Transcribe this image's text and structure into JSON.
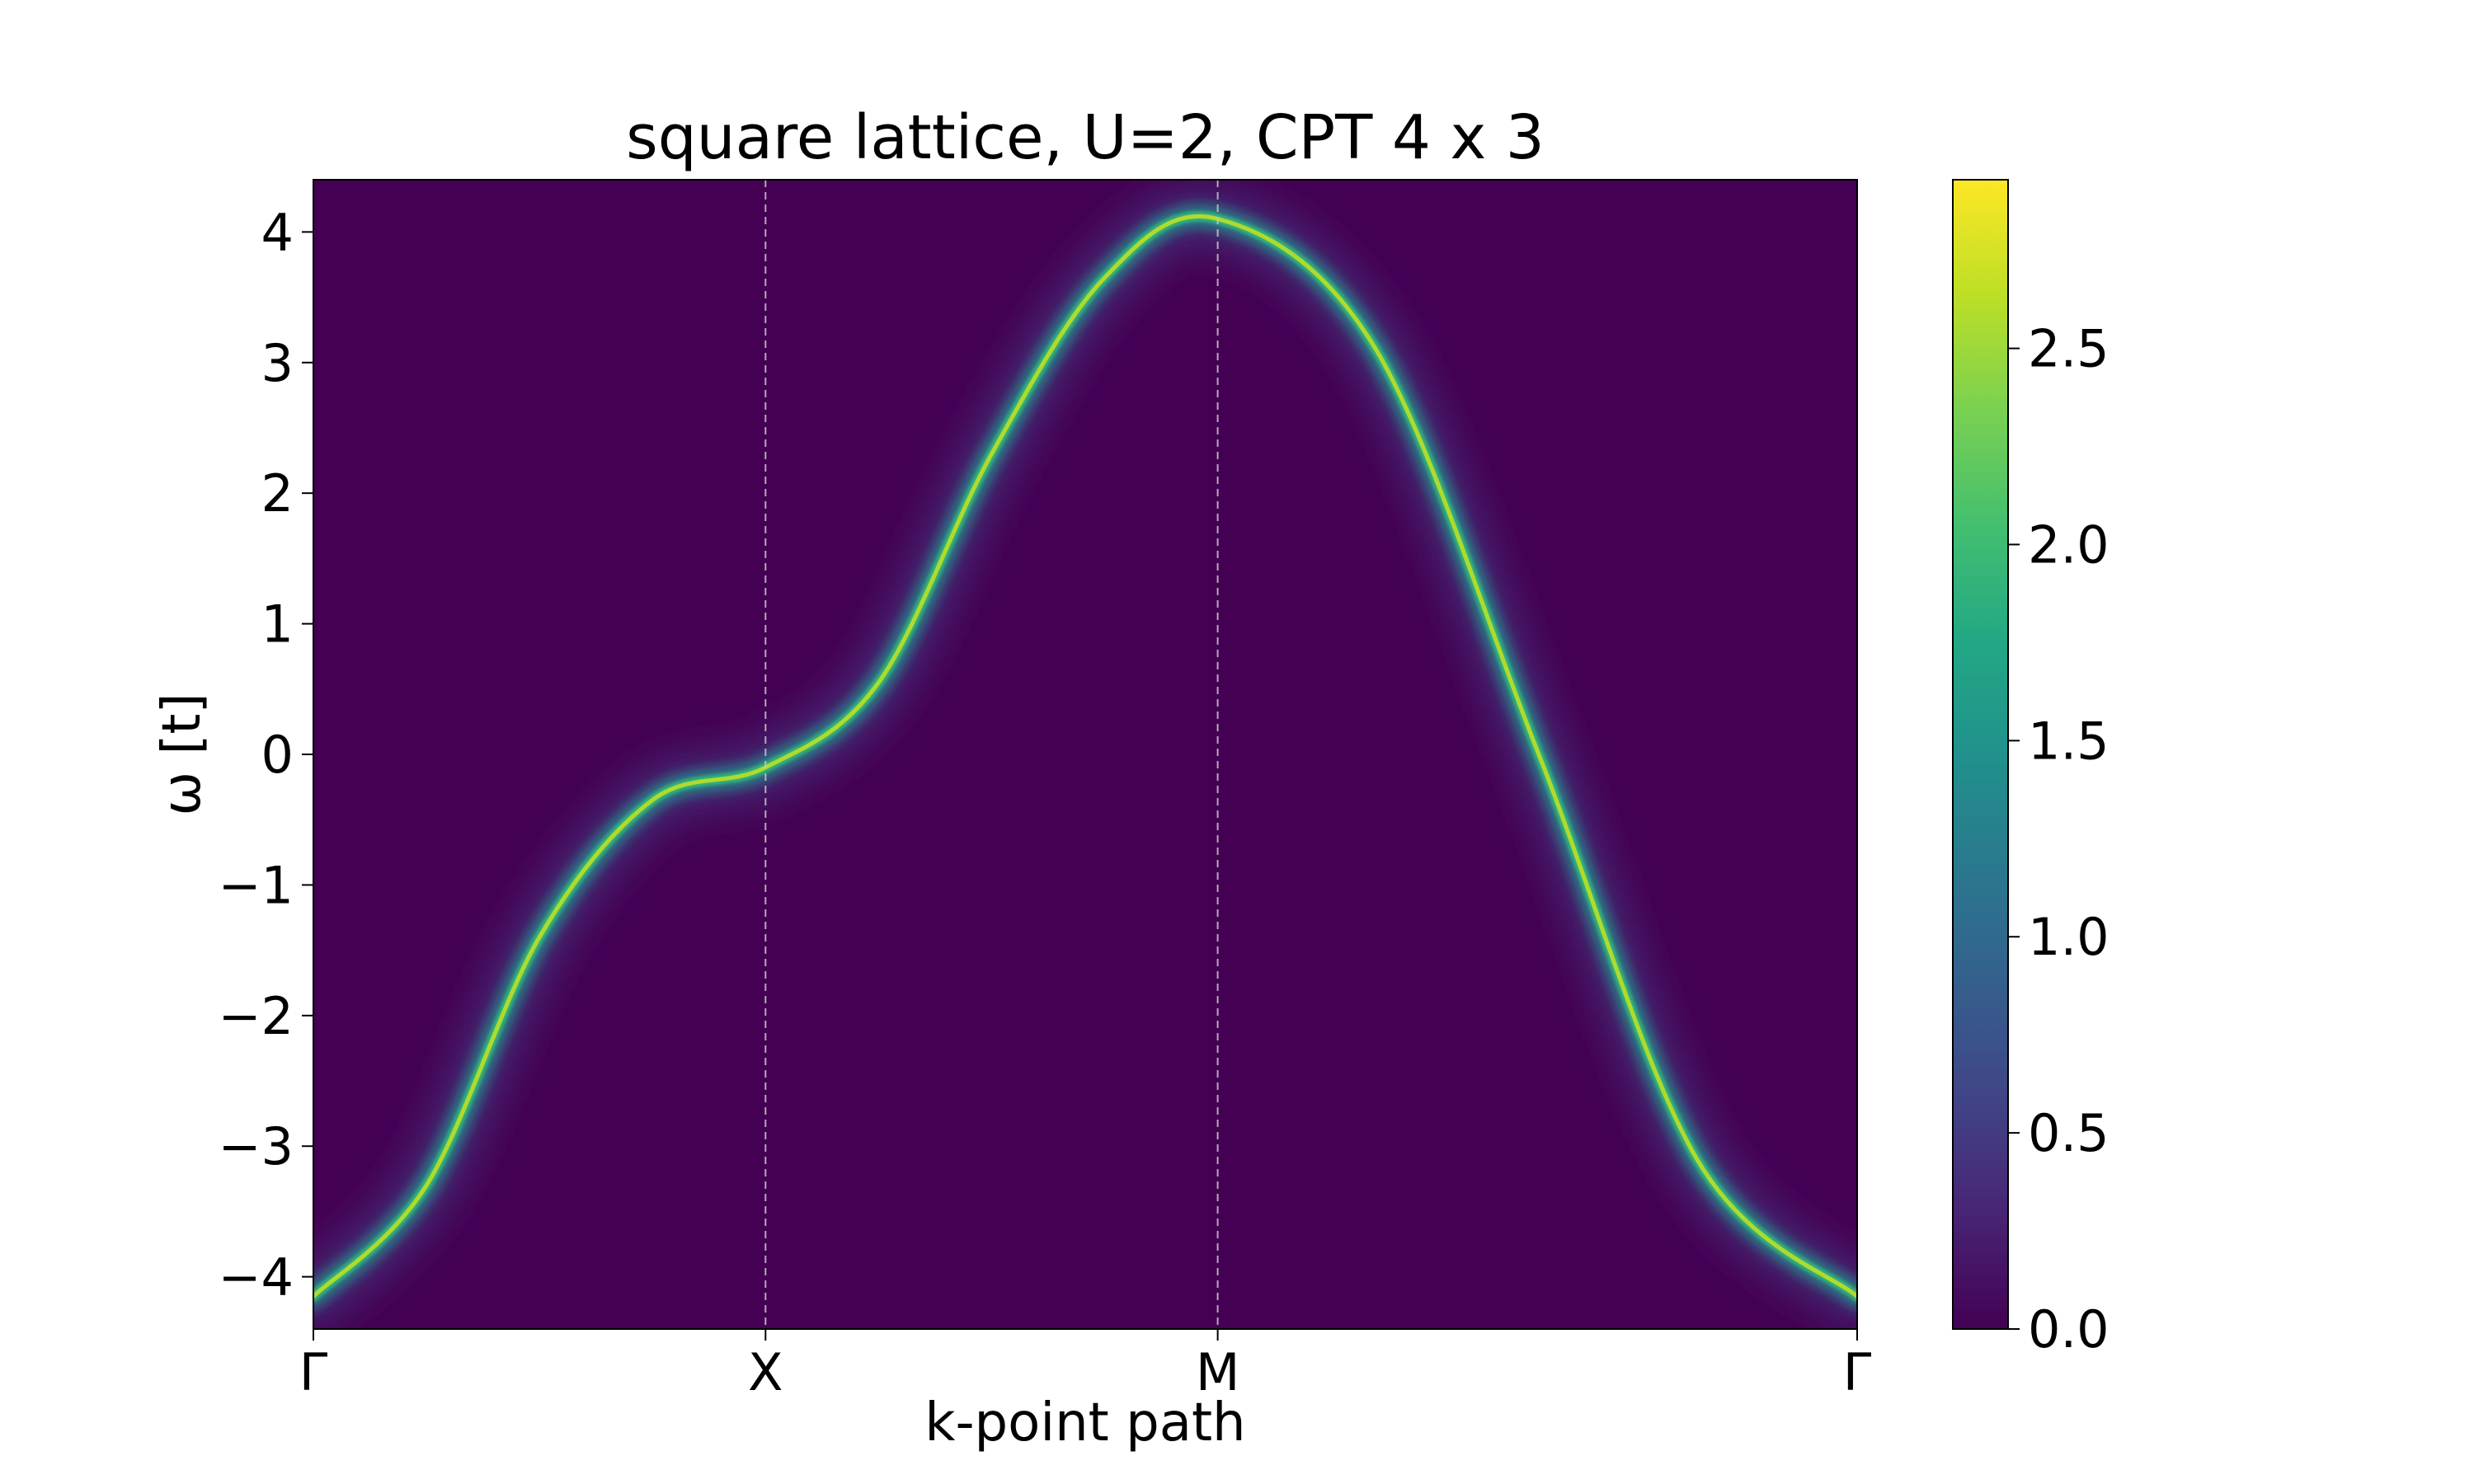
{
  "chart_data": {
    "type": "heatmap",
    "title": "square lattice, U=2, CPT 4 x 3",
    "xlabel": "k-point path",
    "ylabel": "ω [t]",
    "x_ticks": [
      "Γ",
      "X",
      "M",
      "Γ"
    ],
    "x_tick_positions": [
      0,
      1,
      2,
      3.41421
    ],
    "xlim": [
      0,
      3.41421
    ],
    "ylim": [
      -4.4,
      4.4
    ],
    "y_ticks": [
      -4,
      -3,
      -2,
      -1,
      0,
      1,
      2,
      3,
      4
    ],
    "y_tick_labels": [
      "−4",
      "−3",
      "−2",
      "−1",
      "0",
      "1",
      "2",
      "3",
      "4"
    ],
    "colorbar": {
      "colormap": "viridis",
      "range": [
        0.0,
        2.93
      ],
      "ticks": [
        0.0,
        0.5,
        1.0,
        1.5,
        2.0,
        2.5
      ],
      "tick_labels": [
        "0.0",
        "0.5",
        "1.0",
        "1.5",
        "2.0",
        "2.5"
      ]
    },
    "high_symmetry_lines": [
      "X",
      "M"
    ],
    "band_peak": [
      {
        "k": 0.0,
        "omega": -4.15
      },
      {
        "k": 0.25,
        "omega": -3.3
      },
      {
        "k": 0.5,
        "omega": -1.4
      },
      {
        "k": 0.75,
        "omega": -0.35
      },
      {
        "k": 1.0,
        "omega": -0.1
      },
      {
        "k": 1.25,
        "omega": 0.55
      },
      {
        "k": 1.5,
        "omega": 2.3
      },
      {
        "k": 1.75,
        "omega": 3.65
      },
      {
        "k": 2.0,
        "omega": 4.1
      },
      {
        "k": 2.35,
        "omega": 3.1
      },
      {
        "k": 2.71,
        "omega": 0.0
      },
      {
        "k": 3.06,
        "omega": -3.1
      },
      {
        "k": 3.41421,
        "omega": -4.15
      }
    ],
    "grid": false
  }
}
